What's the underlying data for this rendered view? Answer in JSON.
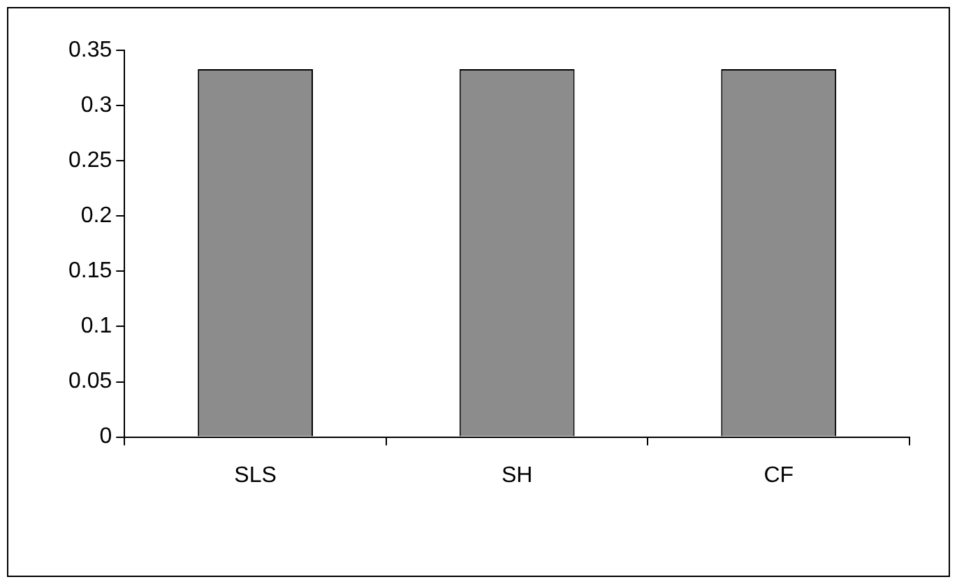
{
  "chart_data": {
    "type": "bar",
    "categories": [
      "SLS",
      "SH",
      "CF"
    ],
    "values": [
      0.333,
      0.333,
      0.333
    ],
    "color": "#8c8c8c",
    "ylim": [
      0,
      0.35
    ],
    "yticks": [
      0,
      0.05,
      0.1,
      0.15,
      0.2,
      0.25,
      0.3,
      0.35
    ],
    "grid": false,
    "legend": false
  }
}
